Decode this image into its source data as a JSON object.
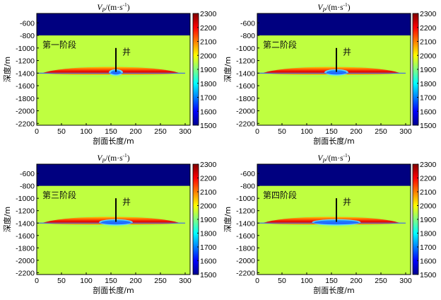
{
  "chart_data": [
    {
      "type": "heatmap",
      "title_main": "V",
      "title_sub": "P",
      "title_unit": "/(m·s",
      "title_exp": "-1",
      "title_close": ")",
      "stage_label": "第一阶段",
      "well_label": "井",
      "xlabel": "剖面长度/m",
      "ylabel": "深度/m",
      "xlim": [
        0,
        310
      ],
      "ylim": [
        -450,
        -2230
      ],
      "xticks": [
        0,
        50,
        100,
        150,
        200,
        250,
        300
      ],
      "yticks": [
        -600,
        -800,
        -1000,
        -1200,
        -1400,
        -1600,
        -1800,
        -2000,
        -2200
      ],
      "colorbar": {
        "min": 1500,
        "max": 2300,
        "ticks": [
          1500,
          1600,
          1700,
          1800,
          1900,
          2000,
          2100,
          2200,
          2300
        ]
      },
      "layers": {
        "overburden_bottom": -800,
        "overburden_velocity": 1500,
        "background_velocity": 1950,
        "reservoir_depth": -1400,
        "reservoir_extent": [
          0,
          300
        ],
        "high_velocity_peak": 2300
      },
      "well": {
        "x": 160,
        "top": -1000,
        "bottom": -1380
      },
      "low_velocity_zone": {
        "x_range": [
          150,
          170
        ],
        "velocity": 1800
      }
    },
    {
      "type": "heatmap",
      "title_main": "V",
      "title_sub": "P",
      "title_unit": "/(m·s",
      "title_exp": "-1",
      "title_close": ")",
      "stage_label": "第二阶段",
      "well_label": "井",
      "xlabel": "剖面长度/m",
      "ylabel": "深度/m",
      "xlim": [
        0,
        310
      ],
      "ylim": [
        -450,
        -2230
      ],
      "xticks": [
        0,
        50,
        100,
        150,
        200,
        250,
        300
      ],
      "yticks": [
        -600,
        -800,
        -1000,
        -1200,
        -1400,
        -1600,
        -1800,
        -2000,
        -2200
      ],
      "colorbar": {
        "min": 1500,
        "max": 2300,
        "ticks": [
          1500,
          1600,
          1700,
          1800,
          1900,
          2000,
          2100,
          2200,
          2300
        ]
      },
      "layers": {
        "overburden_bottom": -800,
        "overburden_velocity": 1500,
        "background_velocity": 1950,
        "reservoir_depth": -1400,
        "reservoir_extent": [
          0,
          300
        ],
        "high_velocity_peak": 2300
      },
      "well": {
        "x": 160,
        "top": -1000,
        "bottom": -1380
      },
      "low_velocity_zone": {
        "x_range": [
          140,
          180
        ],
        "velocity": 1800
      }
    },
    {
      "type": "heatmap",
      "title_main": "V",
      "title_sub": "P",
      "title_unit": "/(m·s",
      "title_exp": "-1",
      "title_close": ")",
      "stage_label": "第三阶段",
      "well_label": "井",
      "xlabel": "剖面长度/m",
      "ylabel": "深度/m",
      "xlim": [
        0,
        310
      ],
      "ylim": [
        -450,
        -2230
      ],
      "xticks": [
        0,
        50,
        100,
        150,
        200,
        250,
        300
      ],
      "yticks": [
        -600,
        -800,
        -1000,
        -1200,
        -1400,
        -1600,
        -1800,
        -2000,
        -2200
      ],
      "colorbar": {
        "min": 1500,
        "max": 2300,
        "ticks": [
          1500,
          1600,
          1700,
          1800,
          1900,
          2000,
          2100,
          2200,
          2300
        ]
      },
      "layers": {
        "overburden_bottom": -800,
        "overburden_velocity": 1500,
        "background_velocity": 1950,
        "reservoir_depth": -1400,
        "reservoir_extent": [
          0,
          300
        ],
        "high_velocity_peak": 2300
      },
      "well": {
        "x": 160,
        "top": -1000,
        "bottom": -1380
      },
      "low_velocity_zone": {
        "x_range": [
          130,
          190
        ],
        "velocity": 1800
      }
    },
    {
      "type": "heatmap",
      "title_main": "V",
      "title_sub": "P",
      "title_unit": "/(m·s",
      "title_exp": "-1",
      "title_close": ")",
      "stage_label": "第四阶段",
      "well_label": "井",
      "xlabel": "剖面长度/m",
      "ylabel": "深度/m",
      "xlim": [
        0,
        310
      ],
      "ylim": [
        -450,
        -2230
      ],
      "xticks": [
        0,
        50,
        100,
        150,
        200,
        250,
        300
      ],
      "yticks": [
        -600,
        -800,
        -1000,
        -1200,
        -1400,
        -1600,
        -1800,
        -2000,
        -2200
      ],
      "colorbar": {
        "min": 1500,
        "max": 2300,
        "ticks": [
          1500,
          1600,
          1700,
          1800,
          1900,
          2000,
          2100,
          2200,
          2300
        ]
      },
      "layers": {
        "overburden_bottom": -800,
        "overburden_velocity": 1500,
        "background_velocity": 1950,
        "reservoir_depth": -1400,
        "reservoir_extent": [
          0,
          300
        ],
        "high_velocity_peak": 2300
      },
      "well": {
        "x": 160,
        "top": -1000,
        "bottom": -1380
      },
      "low_velocity_zone": {
        "x_range": [
          115,
          205
        ],
        "velocity": 1800
      }
    }
  ]
}
